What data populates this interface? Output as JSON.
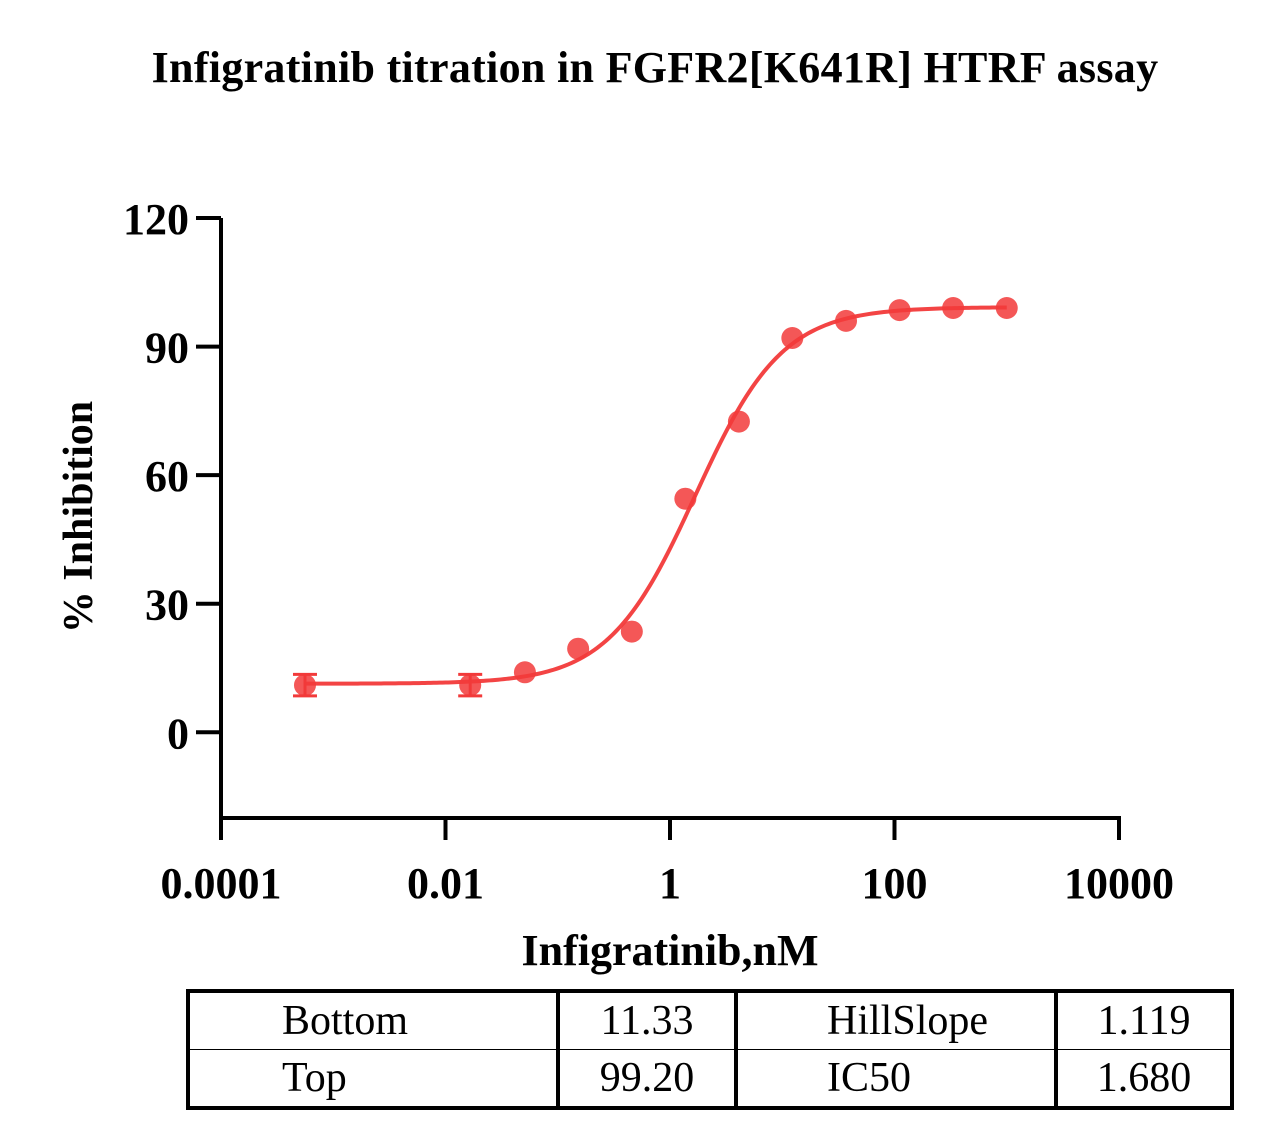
{
  "chart_data": {
    "type": "scatter",
    "title": "Infigratinib titration in FGFR2[K641R] HTRF assay",
    "xlabel": "Infigratinib,nM",
    "ylabel": "% Inhibition",
    "x_scale": "log",
    "xlim": [
      0.0001,
      10000
    ],
    "ylim": [
      -20,
      120
    ],
    "x_ticks": [
      "0.0001",
      "0.01",
      "1",
      "100",
      "10000"
    ],
    "y_ticks": [
      "0",
      "30",
      "60",
      "90",
      "120"
    ],
    "series_color": "#f23a3a",
    "series": [
      {
        "points": [
          {
            "x": 0.00056,
            "y": 11.0,
            "err": 2.5
          },
          {
            "x": 0.0166,
            "y": 11.0,
            "err": 2.5
          },
          {
            "x": 0.051,
            "y": 14.0,
            "err": 1.0
          },
          {
            "x": 0.152,
            "y": 19.5,
            "err": 0.5
          },
          {
            "x": 0.457,
            "y": 23.5,
            "err": 0.5
          },
          {
            "x": 1.37,
            "y": 54.5,
            "err": 0.5
          },
          {
            "x": 4.11,
            "y": 72.5,
            "err": 0.5
          },
          {
            "x": 12.3,
            "y": 92.0,
            "err": 0.5
          },
          {
            "x": 37.0,
            "y": 96.0,
            "err": 0.5
          },
          {
            "x": 111.0,
            "y": 98.5,
            "err": 0.5
          },
          {
            "x": 333.0,
            "y": 99.0,
            "err": 0.5
          },
          {
            "x": 1000.0,
            "y": 99.0,
            "err": 0.5
          }
        ]
      }
    ],
    "fit": {
      "model": "4PL",
      "bottom": 11.33,
      "top": 99.2,
      "hillslope": 1.119,
      "ic50": 1.68
    }
  },
  "params_table": {
    "rows": [
      {
        "label1": "Bottom",
        "value1": "11.33",
        "label2": "HillSlope",
        "value2": "1.119"
      },
      {
        "label1": "Top",
        "value1": "99.20",
        "label2": "IC50",
        "value2": "1.680"
      }
    ]
  }
}
